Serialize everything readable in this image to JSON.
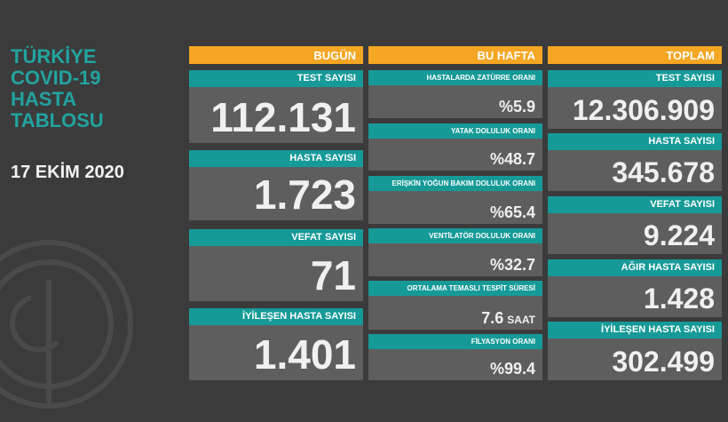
{
  "title": {
    "lines": [
      "TÜRKİYE",
      "COVID-19",
      "HASTA",
      "TABLOSU"
    ],
    "date": "17 EKİM 2020"
  },
  "columns": [
    {
      "header": "BUGÜN",
      "cards": [
        {
          "label": "TEST SAYISI",
          "value": "112.131"
        },
        {
          "label": "HASTA SAYISI",
          "value": "1.723"
        },
        {
          "label": "VEFAT SAYISI",
          "value": "71"
        },
        {
          "label": "İYİLEŞEN HASTA SAYISI",
          "value": "1.401"
        }
      ]
    },
    {
      "header": "BU HAFTA",
      "cards": [
        {
          "label": "HASTALARDA ZATÜRRE ORANI",
          "value": "%5.9"
        },
        {
          "label": "YATAK DOLULUK ORANI",
          "value": "%48.7"
        },
        {
          "label": "ERİŞKİN YOĞUN BAKIM DOLULUK ORANI",
          "value": "%65.4"
        },
        {
          "label": "VENTİLATÖR DOLULUK ORANI",
          "value": "%32.7"
        },
        {
          "label": "ORTALAMA TEMASLI TESPİT SÜRESİ",
          "value": "7.6",
          "unit": "SAAT"
        },
        {
          "label": "FİLYASYON ORANI",
          "value": "%99.4"
        }
      ]
    },
    {
      "header": "TOPLAM",
      "cards": [
        {
          "label": "TEST SAYISI",
          "value": "12.306.909"
        },
        {
          "label": "HASTA SAYISI",
          "value": "345.678"
        },
        {
          "label": "VEFAT SAYISI",
          "value": "9.224"
        },
        {
          "label": "AĞIR HASTA SAYISI",
          "value": "1.428"
        },
        {
          "label": "İYİLEŞEN HASTA SAYISI",
          "value": "302.499"
        }
      ]
    }
  ]
}
